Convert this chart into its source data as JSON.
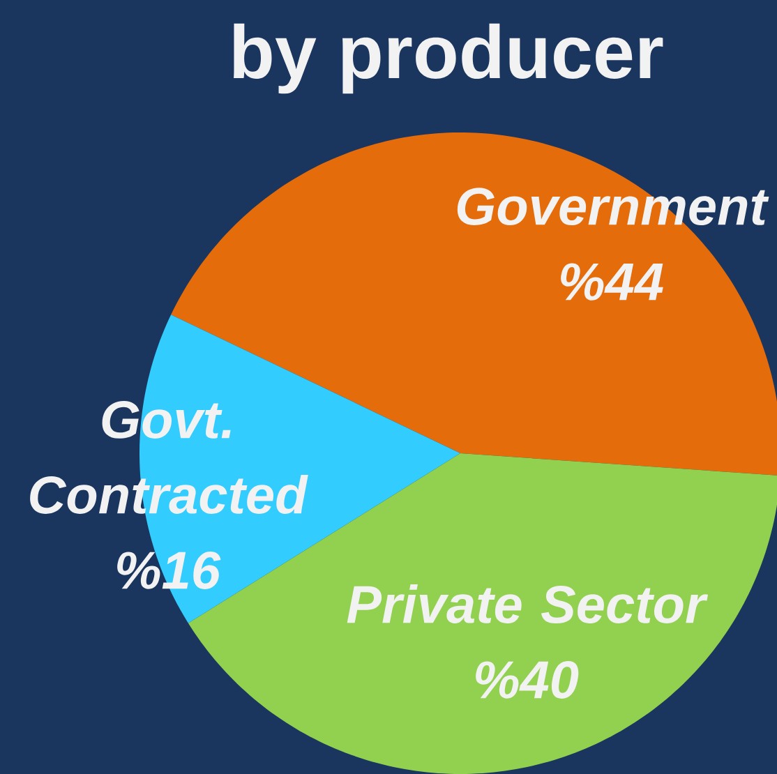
{
  "chart_data": {
    "type": "pie",
    "title": "by producer",
    "categories": [
      "Government",
      "Govt. Contracted",
      "Private Sector"
    ],
    "values": [
      44,
      16,
      40
    ],
    "value_labels": [
      "%44",
      "%16",
      "%40"
    ],
    "colors": [
      "#e46c0a",
      "#33ccff",
      "#92d050"
    ]
  }
}
